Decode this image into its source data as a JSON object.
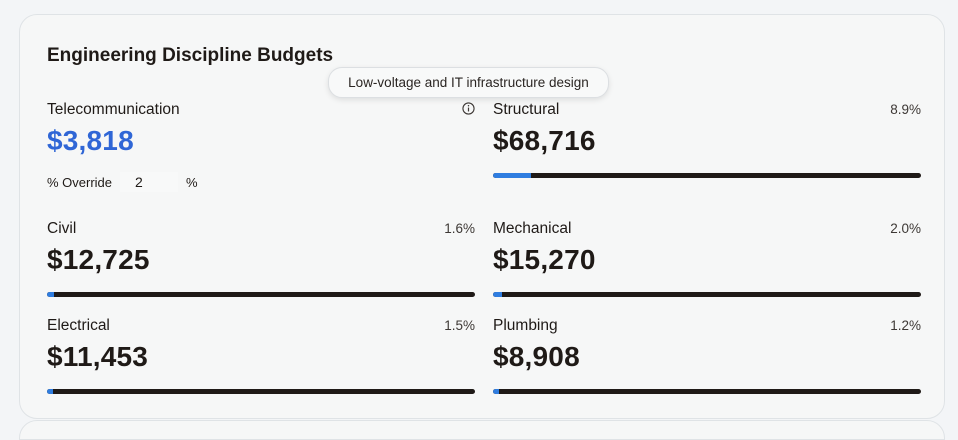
{
  "card": {
    "title": "Engineering Discipline Budgets"
  },
  "tooltip": {
    "text": "Low-voltage and IT infrastructure design"
  },
  "colors": {
    "accent": "#2f66d6",
    "bar_fill": "#2f7de0",
    "bar_track": "#1f1a17"
  },
  "disciplines": [
    {
      "name": "Telecommunication",
      "amount": "$3,818",
      "override_label": "% Override",
      "override_value": "2",
      "override_unit": "%",
      "icon": "info-icon"
    },
    {
      "name": "Structural",
      "amount": "$68,716",
      "percent": "8.9%",
      "fill_fraction": 0.089
    },
    {
      "name": "Civil",
      "amount": "$12,725",
      "percent": "1.6%",
      "fill_fraction": 0.016
    },
    {
      "name": "Mechanical",
      "amount": "$15,270",
      "percent": "2.0%",
      "fill_fraction": 0.02
    },
    {
      "name": "Electrical",
      "amount": "$11,453",
      "percent": "1.5%",
      "fill_fraction": 0.015
    },
    {
      "name": "Plumbing",
      "amount": "$8,908",
      "percent": "1.2%",
      "fill_fraction": 0.012
    }
  ]
}
